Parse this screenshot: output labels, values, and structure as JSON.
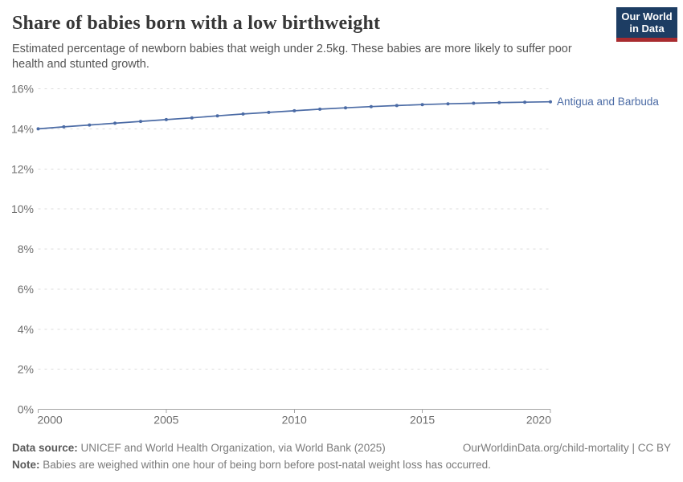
{
  "header": {
    "title": "Share of babies born with a low birthweight",
    "subtitle": "Estimated percentage of newborn babies that weigh under 2.5kg. These babies are more likely to suffer poor health and stunted growth.",
    "logo": {
      "line1": "Our World",
      "line2": "in Data"
    }
  },
  "chart_data": {
    "type": "line",
    "title": "Share of babies born with a low birthweight",
    "x": [
      2000,
      2001,
      2002,
      2003,
      2004,
      2005,
      2006,
      2007,
      2008,
      2009,
      2010,
      2011,
      2012,
      2013,
      2014,
      2015,
      2016,
      2017,
      2018,
      2019,
      2020
    ],
    "series": [
      {
        "name": "Antigua and Barbuda",
        "color": "#4b6ba5",
        "values": [
          14.0,
          14.1,
          14.19,
          14.28,
          14.37,
          14.46,
          14.55,
          14.65,
          14.74,
          14.82,
          14.9,
          14.98,
          15.05,
          15.11,
          15.16,
          15.21,
          15.25,
          15.28,
          15.31,
          15.33,
          15.35
        ]
      }
    ],
    "xlabel": "",
    "ylabel": "",
    "xlim": [
      2000,
      2020
    ],
    "ylim": [
      0,
      16
    ],
    "x_ticks": [
      2000,
      2005,
      2010,
      2015,
      2020
    ],
    "y_ticks": [
      0,
      2,
      4,
      6,
      8,
      10,
      12,
      14,
      16
    ],
    "y_tick_suffix": "%",
    "grid": "horizontal-dashed",
    "legend_position": "end-of-line-label",
    "markers": true
  },
  "footer": {
    "data_source_label": "Data source:",
    "data_source": "UNICEF and World Health Organization, via World Bank (2025)",
    "attribution": "OurWorldinData.org/child-mortality | CC BY",
    "note_label": "Note:",
    "note": "Babies are weighed within one hour of being born before post-natal weight loss has occurred."
  },
  "colors": {
    "accent_line": "#4b6ba5",
    "title_text": "#373737",
    "subtitle_text": "#555555",
    "axis_text": "#6e6e6e",
    "gridline": "#dcdcdc",
    "axis_line": "#a5a5a5",
    "logo_bg": "#1d3d63",
    "logo_bar": "#a82b2f",
    "footer_text": "#7b7b7b",
    "footer_label": "#5a5a5a"
  }
}
